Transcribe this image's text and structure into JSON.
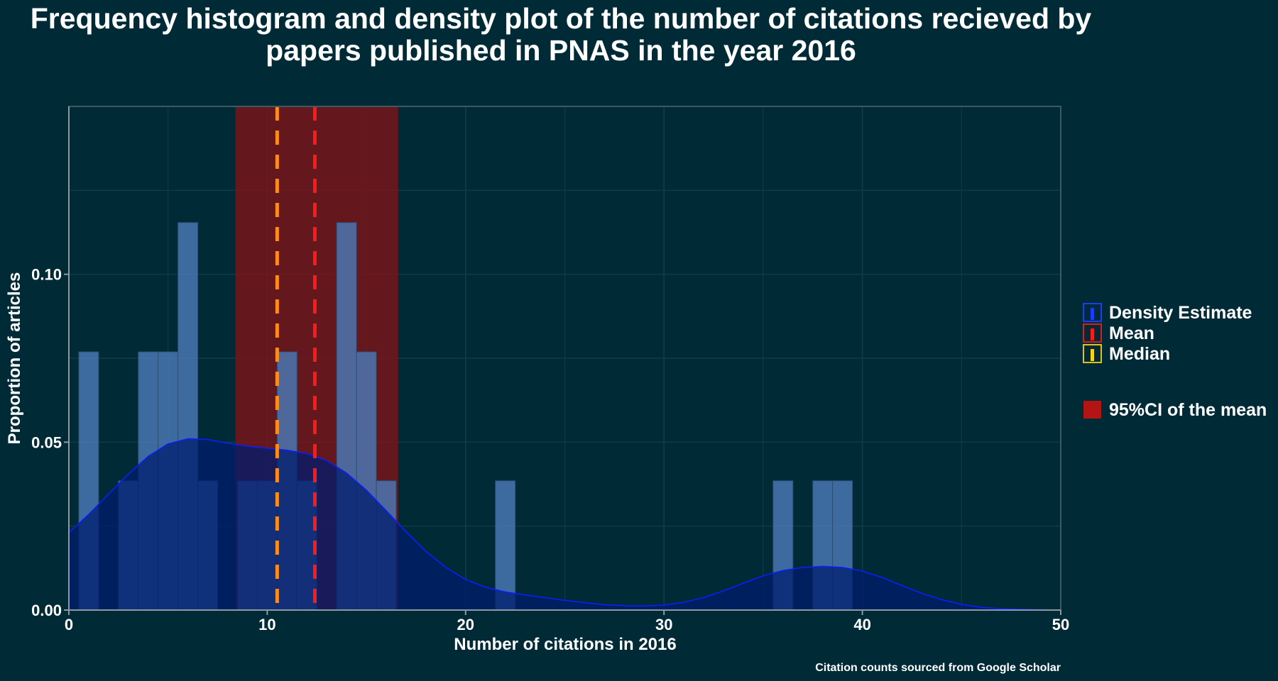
{
  "chart_data": {
    "type": "bar",
    "title_lines": [
      "Frequency histogram and density plot of the number of citations recieved by",
      "papers published in PNAS in the year 2016"
    ],
    "xlabel": "Number of citations in 2016",
    "ylabel": "Proportion of articles",
    "caption": "Citation counts sourced from Google Scholar",
    "xlim": [
      0,
      50
    ],
    "ylim": [
      0,
      0.15
    ],
    "x_ticks": [
      0,
      10,
      20,
      30,
      40,
      50
    ],
    "x_tick_labels": [
      "0",
      "10",
      "20",
      "30",
      "40",
      "50"
    ],
    "y_ticks": [
      0,
      0.05,
      0.1
    ],
    "y_tick_labels": [
      "0.00",
      "0.05",
      "0.10"
    ],
    "grid": true,
    "histogram": {
      "bin_width": 1,
      "bins": [
        {
          "x": 1,
          "value": 0.0769
        },
        {
          "x": 3,
          "value": 0.0385
        },
        {
          "x": 4,
          "value": 0.0769
        },
        {
          "x": 5,
          "value": 0.0769
        },
        {
          "x": 6,
          "value": 0.1154
        },
        {
          "x": 7,
          "value": 0.0385
        },
        {
          "x": 9,
          "value": 0.0385
        },
        {
          "x": 10,
          "value": 0.0385
        },
        {
          "x": 11,
          "value": 0.0769
        },
        {
          "x": 12,
          "value": 0.0385
        },
        {
          "x": 14,
          "value": 0.1154
        },
        {
          "x": 15,
          "value": 0.0769
        },
        {
          "x": 16,
          "value": 0.0385
        },
        {
          "x": 22,
          "value": 0.0385
        },
        {
          "x": 36,
          "value": 0.0385
        },
        {
          "x": 38,
          "value": 0.0385
        },
        {
          "x": 39,
          "value": 0.0385
        }
      ]
    },
    "density": {
      "x": [
        0,
        1,
        2,
        3,
        4,
        5,
        6,
        7,
        8,
        9,
        10,
        11,
        12,
        13,
        14,
        15,
        16,
        17,
        18,
        19,
        20,
        21,
        22,
        23,
        24,
        25,
        26,
        27,
        28,
        29,
        30,
        31,
        32,
        33,
        34,
        35,
        36,
        37,
        38,
        39,
        40,
        41,
        42,
        43,
        44,
        45,
        46,
        47,
        48,
        49,
        50
      ],
      "y": [
        0.023,
        0.0285,
        0.0345,
        0.0405,
        0.0458,
        0.0495,
        0.051,
        0.0508,
        0.0497,
        0.0488,
        0.0482,
        0.0476,
        0.0466,
        0.0445,
        0.0408,
        0.0357,
        0.0296,
        0.0233,
        0.0175,
        0.0127,
        0.0091,
        0.0068,
        0.0054,
        0.0045,
        0.0037,
        0.0029,
        0.0022,
        0.0016,
        0.0013,
        0.0012,
        0.0015,
        0.0023,
        0.0037,
        0.0057,
        0.008,
        0.0102,
        0.0118,
        0.0127,
        0.013,
        0.0127,
        0.0116,
        0.0097,
        0.0073,
        0.005,
        0.0031,
        0.0017,
        0.0008,
        0.0004,
        0.0002,
        0.0001,
        0.0
      ]
    },
    "mean": 12.4,
    "median": 10.5,
    "ci95": [
      8.4,
      16.6
    ],
    "colors": {
      "background": "#002b36",
      "panel_border": "#3d5963",
      "grid": "#0f3d47",
      "axis_line": "#8a9aa0",
      "histogram_fill": "#4a7ab8",
      "histogram_stroke": "#2c4d75",
      "density_fill": "#001c6e",
      "density_line": "#0a1eff",
      "ci_fill": "#8b0f12",
      "mean_line": "#ff1a1a",
      "median_line": "#ff8c1a"
    },
    "legend": {
      "position": "right",
      "items": [
        {
          "label": "Density Estimate",
          "type": "line-box",
          "box_color": "#1a3cff",
          "bar_color": "#1a3cff"
        },
        {
          "label": "Mean",
          "type": "line-box",
          "box_color": "#e01a1a",
          "bar_color": "#ff1a1a"
        },
        {
          "label": "Median",
          "type": "line-box",
          "box_color": "#e0c21a",
          "bar_color": "#f5d21a"
        }
      ],
      "ci_item": {
        "label": "95%CI of the mean",
        "color": "#b51414"
      }
    }
  }
}
